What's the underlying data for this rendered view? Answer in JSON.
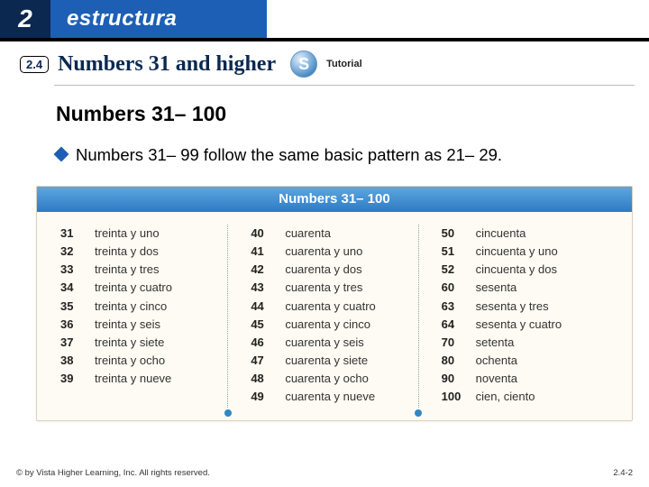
{
  "header": {
    "chapter": "2",
    "section": "estructura",
    "badge": "2.4",
    "subtitle": "Numbers 31 and higher",
    "s_icon": "S",
    "tutorial": "Tutorial"
  },
  "content": {
    "heading": "Numbers 31– 100",
    "bullet": "Numbers 31– 99 follow the same basic pattern as 21– 29."
  },
  "table": {
    "title": "Numbers 31– 100",
    "columns": [
      [
        {
          "n": "31",
          "w": "treinta y uno"
        },
        {
          "n": "32",
          "w": "treinta y dos"
        },
        {
          "n": "33",
          "w": "treinta y tres"
        },
        {
          "n": "34",
          "w": "treinta y cuatro"
        },
        {
          "n": "35",
          "w": "treinta y cinco"
        },
        {
          "n": "36",
          "w": "treinta y seis"
        },
        {
          "n": "37",
          "w": "treinta y siete"
        },
        {
          "n": "38",
          "w": "treinta y ocho"
        },
        {
          "n": "39",
          "w": "treinta y nueve"
        }
      ],
      [
        {
          "n": "40",
          "w": "cuarenta"
        },
        {
          "n": "41",
          "w": "cuarenta y uno"
        },
        {
          "n": "42",
          "w": "cuarenta y dos"
        },
        {
          "n": "43",
          "w": "cuarenta y tres"
        },
        {
          "n": "44",
          "w": "cuarenta y cuatro"
        },
        {
          "n": "45",
          "w": "cuarenta y cinco"
        },
        {
          "n": "46",
          "w": "cuarenta y seis"
        },
        {
          "n": "47",
          "w": "cuarenta y siete"
        },
        {
          "n": "48",
          "w": "cuarenta y ocho"
        },
        {
          "n": "49",
          "w": "cuarenta y nueve"
        }
      ],
      [
        {
          "n": "50",
          "w": "cincuenta"
        },
        {
          "n": "51",
          "w": "cincuenta y uno"
        },
        {
          "n": "52",
          "w": "cincuenta y dos"
        },
        {
          "n": "60",
          "w": "sesenta"
        },
        {
          "n": "63",
          "w": "sesenta y tres"
        },
        {
          "n": "64",
          "w": "sesenta y cuatro"
        },
        {
          "n": "70",
          "w": "setenta"
        },
        {
          "n": "80",
          "w": "ochenta"
        },
        {
          "n": "90",
          "w": "noventa"
        },
        {
          "n": "100",
          "w": "cien, ciento"
        }
      ]
    ]
  },
  "footer": {
    "copyright": "© by Vista Higher Learning, Inc. All rights reserved.",
    "page": "2.4-2"
  },
  "colors": {
    "navy": "#0a2850",
    "blue": "#1d5fb5",
    "table_bg": "#fdfbf3",
    "table_header_top": "#5ea7e0",
    "table_header_bottom": "#2e7cc5"
  }
}
